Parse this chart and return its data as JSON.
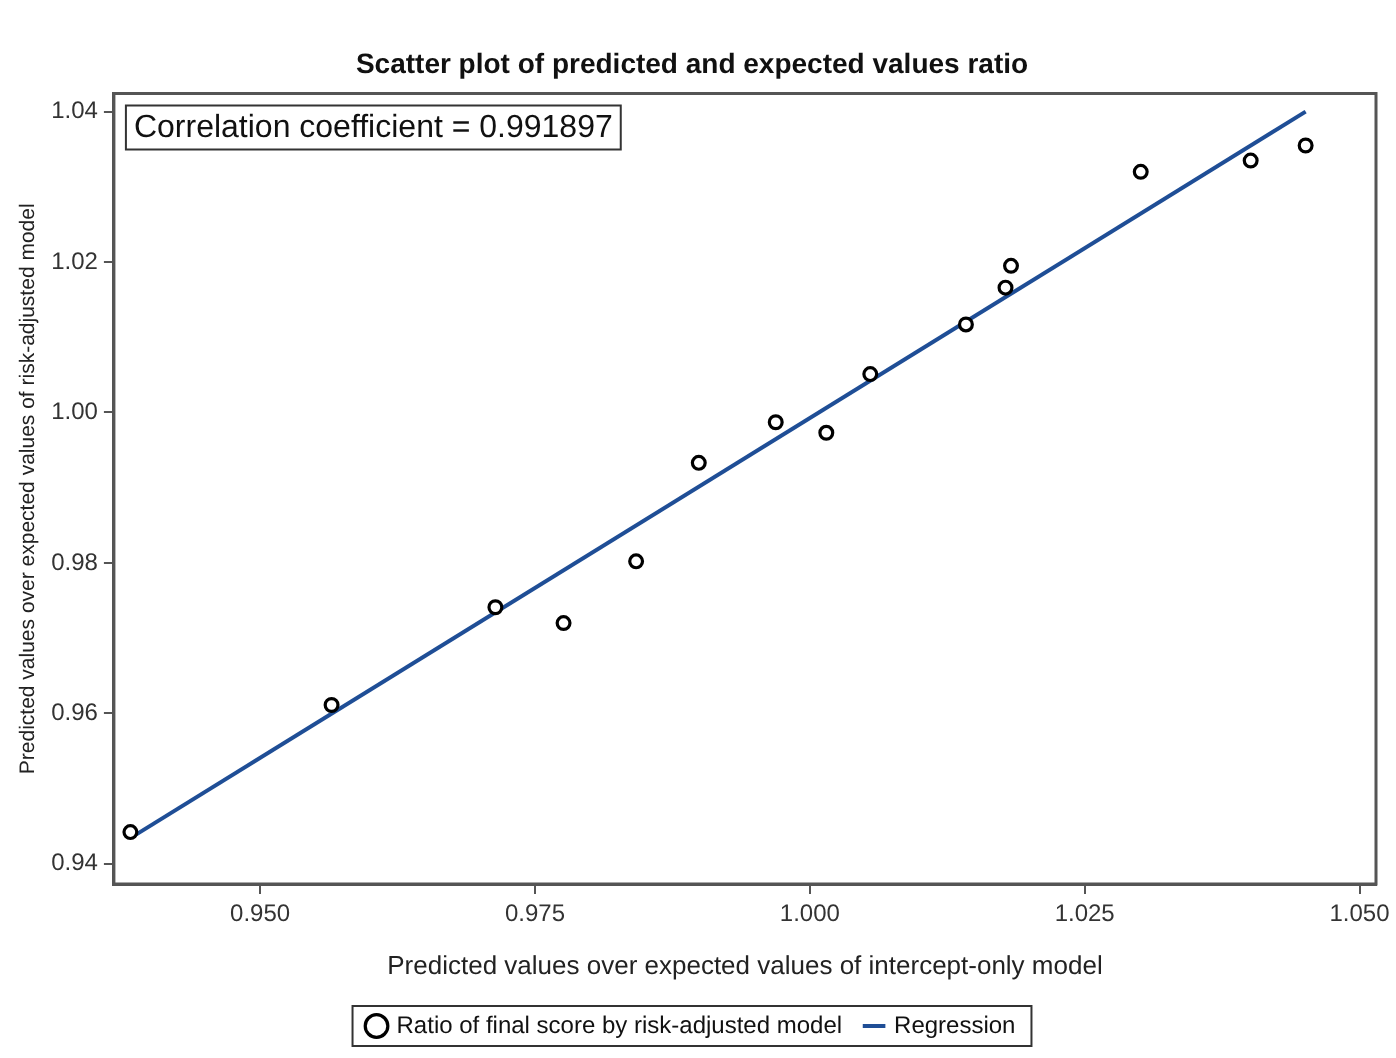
{
  "chart_data": {
    "type": "scatter",
    "title": "Scatter plot of predicted and expected values ratio",
    "xlabel": "Predicted values over expected values of intercept-only model",
    "ylabel": "Predicted values over expected values of risk-adjusted model",
    "annotations": [
      "Correlation coefficient = 0.991897"
    ],
    "xlim": [
      0.9367,
      1.0515
    ],
    "xticks": [
      {
        "value": 0.95,
        "label": "0.950"
      },
      {
        "value": 0.975,
        "label": "0.975"
      },
      {
        "value": 1.0,
        "label": "1.000"
      },
      {
        "value": 1.025,
        "label": "1.025"
      },
      {
        "value": 1.05,
        "label": "1.050"
      }
    ],
    "ylim": [
      0.9373,
      1.0424
    ],
    "yticks": [
      {
        "value": 0.94,
        "label": "0.94"
      },
      {
        "value": 0.96,
        "label": "0.96"
      },
      {
        "value": 0.98,
        "label": "0.98"
      },
      {
        "value": 1.0,
        "label": "1.00"
      },
      {
        "value": 1.02,
        "label": "1.02"
      },
      {
        "value": 1.04,
        "label": "1.04"
      }
    ],
    "grid": false,
    "legend": "bottom",
    "series": [
      {
        "name": "Ratio of final score by risk-adjusted model",
        "marker": "circle",
        "color": "#000000",
        "x": [
          0.9382,
          0.9565,
          0.9714,
          0.9776,
          0.9842,
          0.9899,
          0.9969,
          1.0015,
          1.0055,
          1.0142,
          1.0178,
          1.0183,
          1.0301,
          1.0401,
          1.0451
        ],
        "values": [
          0.9442,
          0.9611,
          0.9741,
          0.972,
          0.9802,
          0.9933,
          0.9987,
          0.9973,
          1.0051,
          1.0117,
          1.0166,
          1.0195,
          1.032,
          1.0335,
          1.0355
        ]
      },
      {
        "name": "Regression",
        "type": "line",
        "marker": "none",
        "color": "#1f4e96",
        "x": [
          0.9383,
          1.0451
        ],
        "values": [
          0.9435,
          1.04
        ]
      }
    ]
  }
}
